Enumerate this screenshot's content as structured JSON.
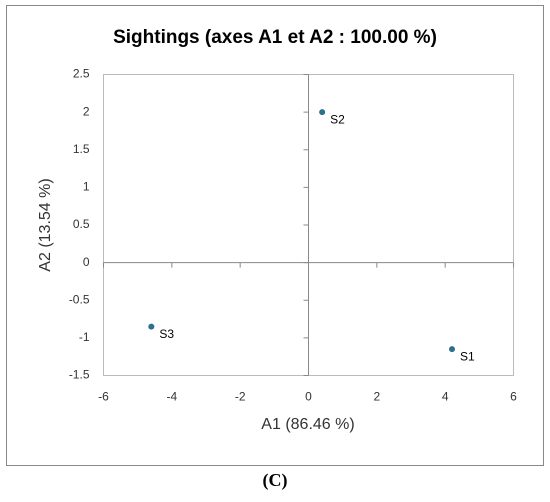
{
  "chart_data": {
    "type": "scatter",
    "title": "Sightings (axes A1 et A2 : 100.00 %)",
    "xlabel": "A1 (86.46 %)",
    "ylabel": "A2 (13.54 %)",
    "series": [
      {
        "color": "#2e6e8e",
        "x": [
          4.2,
          0.4,
          -4.6
        ],
        "values": [
          -1.15,
          2.0,
          -0.85
        ],
        "labels": [
          "S1",
          "S2",
          "S3"
        ]
      }
    ],
    "xlim": [
      -6,
      6
    ],
    "xticks": [
      -6,
      -4,
      -2,
      0,
      2,
      4,
      6
    ],
    "ylim": [
      -1.5,
      2.5
    ],
    "yticks": [
      -1.5,
      -1,
      -0.5,
      0,
      0.5,
      1,
      1.5,
      2,
      2.5
    ],
    "caption": "(C)"
  }
}
